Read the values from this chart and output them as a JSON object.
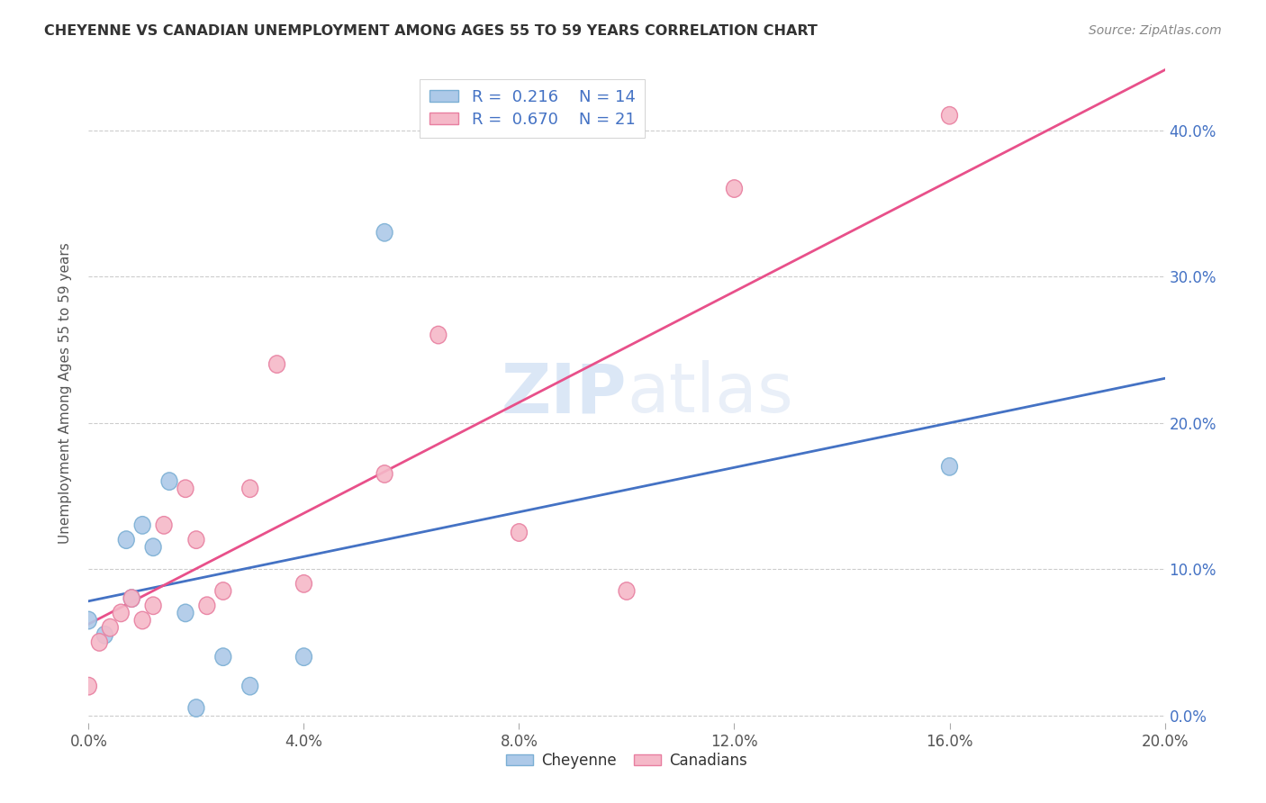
{
  "title": "CHEYENNE VS CANADIAN UNEMPLOYMENT AMONG AGES 55 TO 59 YEARS CORRELATION CHART",
  "source": "Source: ZipAtlas.com",
  "ylabel": "Unemployment Among Ages 55 to 59 years",
  "xlim": [
    0.0,
    0.2
  ],
  "ylim": [
    -0.005,
    0.445
  ],
  "xticks": [
    0.0,
    0.04,
    0.08,
    0.12,
    0.16,
    0.2
  ],
  "yticks": [
    0.0,
    0.1,
    0.2,
    0.3,
    0.4
  ],
  "cheyenne_color": "#adc9e8",
  "canadian_color": "#f5b8c8",
  "cheyenne_edge": "#7bafd4",
  "canadian_edge": "#e87fa0",
  "line_blue": "#4472c4",
  "line_pink": "#e8508a",
  "R_cheyenne": 0.216,
  "N_cheyenne": 14,
  "R_canadian": 0.67,
  "N_canadian": 21,
  "cheyenne_x": [
    0.0,
    0.003,
    0.007,
    0.008,
    0.01,
    0.012,
    0.015,
    0.018,
    0.02,
    0.025,
    0.03,
    0.04,
    0.055,
    0.16
  ],
  "cheyenne_y": [
    0.065,
    0.055,
    0.12,
    0.08,
    0.13,
    0.115,
    0.16,
    0.07,
    0.005,
    0.04,
    0.02,
    0.04,
    0.33,
    0.17
  ],
  "canadian_x": [
    0.0,
    0.002,
    0.004,
    0.006,
    0.008,
    0.01,
    0.012,
    0.014,
    0.018,
    0.02,
    0.022,
    0.025,
    0.03,
    0.035,
    0.04,
    0.055,
    0.065,
    0.08,
    0.1,
    0.12,
    0.16
  ],
  "canadian_y": [
    0.02,
    0.05,
    0.06,
    0.07,
    0.08,
    0.065,
    0.075,
    0.13,
    0.155,
    0.12,
    0.075,
    0.085,
    0.155,
    0.24,
    0.09,
    0.165,
    0.26,
    0.125,
    0.085,
    0.36,
    0.41
  ],
  "watermark_zip": "ZIP",
  "watermark_atlas": "atlas",
  "background_color": "#ffffff",
  "grid_color": "#cccccc",
  "right_tick_color": "#4472c4"
}
